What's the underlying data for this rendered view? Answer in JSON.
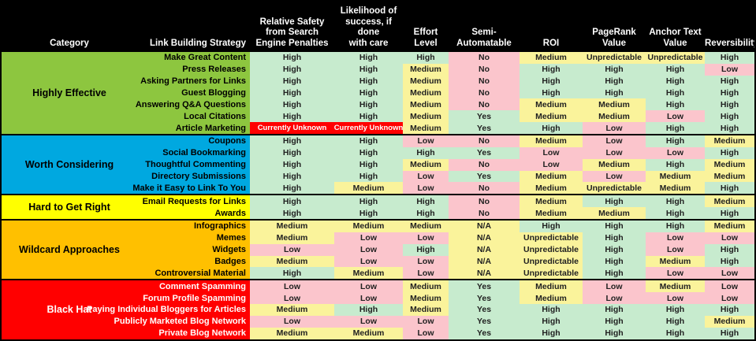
{
  "chart_data": {
    "type": "table",
    "title": "Link Building Strategy Comparison Table",
    "header_bg": "#000000",
    "header_text_color": "#FFFFFF",
    "columns": [
      {
        "id": "category",
        "label": "Category",
        "align": "center"
      },
      {
        "id": "strategy",
        "label": "Link Building Strategy",
        "align": "right"
      },
      {
        "id": "safety",
        "label": "Relative Safety\nfrom Search\nEngine Penalties",
        "align": "center"
      },
      {
        "id": "likelihood",
        "label": "Likelihood of\nsuccess, if done\nwith care",
        "align": "center"
      },
      {
        "id": "effort",
        "label": "Effort\nLevel",
        "align": "center"
      },
      {
        "id": "semi-automatable",
        "label": "Semi-\nAutomatable",
        "align": "center"
      },
      {
        "id": "roi",
        "label": "ROI",
        "align": "center"
      },
      {
        "id": "pagerank",
        "label": "PageRank\nValue",
        "align": "center"
      },
      {
        "id": "anchor-text",
        "label": "Anchor Text\nValue",
        "align": "center"
      },
      {
        "id": "reversibility",
        "label": "Reversibility",
        "align": "center"
      }
    ],
    "value_colors": {
      "High": "#C7EBCE",
      "Medium": "#FAF39B",
      "Low": "#FBC5CC",
      "Yes": "#C7EBCE",
      "No": "#FBC5CC",
      "N/A": "#FAF39B",
      "Unpredictable": "#FAF39B",
      "Currently Unknown": "#FF0000"
    },
    "value_text_colors": {
      "default": "#212121",
      "Currently Unknown": "#FFFFFF"
    },
    "groups": [
      {
        "name": "Highly Effective",
        "color": "#8DC63F",
        "text_color": "#000000",
        "rows": [
          {
            "strategy": "Make Great Content",
            "values": [
              "High",
              "High",
              "High",
              "No",
              "Medium",
              "Unpredictable",
              "Unpredictable",
              "High"
            ]
          },
          {
            "strategy": "Press Releases",
            "values": [
              "High",
              "High",
              "Medium",
              "No",
              "High",
              "High",
              "High",
              "Low"
            ]
          },
          {
            "strategy": "Asking Partners for Links",
            "values": [
              "High",
              "High",
              "Medium",
              "No",
              "High",
              "High",
              "High",
              "High"
            ]
          },
          {
            "strategy": "Guest Blogging",
            "values": [
              "High",
              "High",
              "Medium",
              "No",
              "High",
              "High",
              "High",
              "High"
            ]
          },
          {
            "strategy": "Answering Q&A Questions",
            "values": [
              "High",
              "High",
              "Medium",
              "No",
              "Medium",
              "Medium",
              "High",
              "High"
            ]
          },
          {
            "strategy": "Local Citations",
            "values": [
              "High",
              "High",
              "Medium",
              "Yes",
              "Medium",
              "Medium",
              "Low",
              "High"
            ]
          },
          {
            "strategy": "Article Marketing",
            "values": [
              "Currently Unknown",
              "Currently Unknown",
              "Medium",
              "Yes",
              "High",
              "Low",
              "High",
              "High"
            ]
          }
        ]
      },
      {
        "name": "Worth Considering",
        "color": "#00A8E0",
        "text_color": "#000000",
        "rows": [
          {
            "strategy": "Coupons",
            "values": [
              "High",
              "High",
              "Low",
              "No",
              "Medium",
              "Low",
              "High",
              "Medium"
            ]
          },
          {
            "strategy": "Social Bookmarking",
            "values": [
              "High",
              "High",
              "High",
              "Yes",
              "Low",
              "Low",
              "Low",
              "High"
            ]
          },
          {
            "strategy": "Thoughtful Commenting",
            "values": [
              "High",
              "High",
              "Medium",
              "No",
              "Low",
              "Medium",
              "High",
              "Medium"
            ]
          },
          {
            "strategy": "Directory Submissions",
            "values": [
              "High",
              "High",
              "Low",
              "Yes",
              "Medium",
              "Low",
              "Medium",
              "Medium"
            ]
          },
          {
            "strategy": "Make it Easy to Link To You",
            "values": [
              "High",
              "Medium",
              "Low",
              "No",
              "Medium",
              "Unpredictable",
              "Medium",
              "High"
            ]
          }
        ]
      },
      {
        "name": "Hard to Get Right",
        "color": "#FFFF00",
        "text_color": "#000000",
        "rows": [
          {
            "strategy": "Email Requests for Links",
            "values": [
              "High",
              "High",
              "High",
              "No",
              "Medium",
              "High",
              "High",
              "Medium"
            ]
          },
          {
            "strategy": "Awards",
            "values": [
              "High",
              "High",
              "High",
              "No",
              "Medium",
              "Medium",
              "High",
              "High"
            ]
          }
        ]
      },
      {
        "name": "Wildcard Approaches",
        "color": "#FFC000",
        "text_color": "#000000",
        "rows": [
          {
            "strategy": "Infographics",
            "values": [
              "Medium",
              "Medium",
              "Medium",
              "N/A",
              "High",
              "High",
              "High",
              "Medium"
            ]
          },
          {
            "strategy": "Memes",
            "values": [
              "Medium",
              "Low",
              "Low",
              "N/A",
              "Unpredictable",
              "High",
              "Low",
              "Low"
            ]
          },
          {
            "strategy": "Widgets",
            "values": [
              "Low",
              "Low",
              "High",
              "N/A",
              "Unpredictable",
              "High",
              "Low",
              "High"
            ]
          },
          {
            "strategy": "Badges",
            "values": [
              "Medium",
              "Low",
              "Low",
              "N/A",
              "Unpredictable",
              "High",
              "Medium",
              "High"
            ]
          },
          {
            "strategy": "Controversial Material",
            "values": [
              "High",
              "Medium",
              "Low",
              "N/A",
              "Unpredictable",
              "High",
              "Low",
              "Low"
            ]
          }
        ]
      },
      {
        "name": "Black Hat",
        "color": "#FF0000",
        "text_color": "#FFFFFF",
        "rows": [
          {
            "strategy": "Comment Spamming",
            "values": [
              "Low",
              "Low",
              "Medium",
              "Yes",
              "Medium",
              "Low",
              "Medium",
              "Low"
            ]
          },
          {
            "strategy": "Forum Profile Spamming",
            "values": [
              "Low",
              "Low",
              "Medium",
              "Yes",
              "Medium",
              "Low",
              "Low",
              "Low"
            ]
          },
          {
            "strategy": "Paying Individual Bloggers for Articles",
            "values": [
              "Medium",
              "High",
              "Medium",
              "Yes",
              "High",
              "High",
              "High",
              "High"
            ]
          },
          {
            "strategy": "Publicly Marketed Blog Network",
            "values": [
              "Low",
              "Low",
              "Low",
              "Yes",
              "High",
              "High",
              "High",
              "Medium"
            ]
          },
          {
            "strategy": "Private Blog Network",
            "values": [
              "Medium",
              "Medium",
              "Low",
              "Yes",
              "High",
              "High",
              "High",
              "High"
            ]
          }
        ]
      }
    ]
  }
}
